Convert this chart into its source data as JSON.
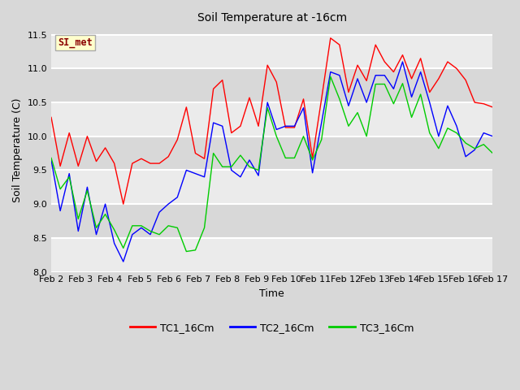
{
  "title": "Soil Temperature at -16cm",
  "xlabel": "Time",
  "ylabel": "Soil Temperature (C)",
  "ylim": [
    8.0,
    11.6
  ],
  "yticks": [
    8.0,
    8.5,
    9.0,
    9.5,
    10.0,
    10.5,
    11.0,
    11.5
  ],
  "xtick_labels": [
    "Feb 2",
    "Feb 3",
    "Feb 4",
    "Feb 5",
    "Feb 6",
    "Feb 7",
    "Feb 8",
    "Feb 9",
    "Feb 10",
    "Feb 11",
    "Feb 12",
    "Feb 13",
    "Feb 14",
    "Feb 15",
    "Feb 16",
    "Feb 17"
  ],
  "annotation_text": "SI_met",
  "annotation_color": "#8B0000",
  "annotation_bg": "#FFFFCC",
  "bg_color": "#D8D8D8",
  "colors": {
    "TC1_16Cm": "#FF0000",
    "TC2_16Cm": "#0000FF",
    "TC3_16Cm": "#00CC00"
  },
  "TC1_16Cm": [
    10.28,
    9.56,
    10.05,
    9.56,
    10.0,
    9.63,
    9.83,
    9.6,
    9.0,
    9.6,
    9.67,
    9.6,
    9.6,
    9.7,
    9.95,
    10.43,
    9.75,
    9.67,
    10.7,
    10.83,
    10.05,
    10.15,
    10.57,
    10.15,
    11.05,
    10.8,
    10.13,
    10.13,
    10.55,
    9.68,
    10.55,
    11.45,
    11.35,
    10.65,
    11.05,
    10.82,
    11.35,
    11.1,
    10.95,
    11.2,
    10.85,
    11.15,
    10.65,
    10.85,
    11.1,
    11.0,
    10.83,
    10.5,
    10.48,
    10.43
  ],
  "TC2_16Cm": [
    9.65,
    8.9,
    9.45,
    8.6,
    9.25,
    8.55,
    9.0,
    8.42,
    8.15,
    8.55,
    8.65,
    8.55,
    8.88,
    9.0,
    9.1,
    9.5,
    9.45,
    9.4,
    10.2,
    10.15,
    9.5,
    9.4,
    9.65,
    9.42,
    10.5,
    10.1,
    10.15,
    10.15,
    10.42,
    9.46,
    10.2,
    10.95,
    10.9,
    10.45,
    10.85,
    10.5,
    10.9,
    10.9,
    10.7,
    11.1,
    10.58,
    10.95,
    10.5,
    10.0,
    10.45,
    10.15,
    9.7,
    9.8,
    10.05,
    10.0
  ],
  "TC3_16Cm": [
    9.68,
    9.22,
    9.4,
    8.78,
    9.2,
    8.65,
    8.85,
    8.62,
    8.35,
    8.68,
    8.68,
    8.6,
    8.55,
    8.68,
    8.65,
    8.3,
    8.32,
    8.65,
    9.75,
    9.55,
    9.55,
    9.72,
    9.55,
    9.5,
    10.42,
    10.0,
    9.68,
    9.68,
    10.0,
    9.65,
    9.95,
    10.88,
    10.55,
    10.15,
    10.35,
    10.0,
    10.77,
    10.77,
    10.48,
    10.78,
    10.28,
    10.62,
    10.05,
    9.82,
    10.12,
    10.05,
    9.9,
    9.82,
    9.88,
    9.75
  ],
  "legend_entries": [
    "TC1_16Cm",
    "TC2_16Cm",
    "TC3_16Cm"
  ]
}
